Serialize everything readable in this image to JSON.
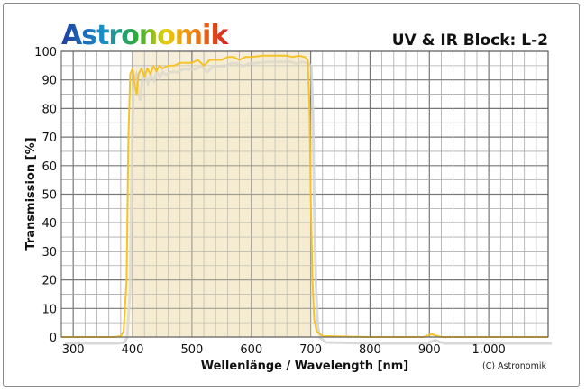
{
  "brand": {
    "logo_text": "Astronomik"
  },
  "chart_data": {
    "type": "line",
    "title": "UV & IR Block: L-2",
    "xlabel": "Wellenlänge / Wavelength [nm]",
    "ylabel": "Transmission [%]",
    "xlim": [
      280,
      1100
    ],
    "ylim": [
      0,
      100
    ],
    "grid": true,
    "x_ticks": [
      300,
      400,
      500,
      600,
      700,
      800,
      900,
      1000
    ],
    "x_tick_labels": [
      "300",
      "400",
      "500",
      "600",
      "700",
      "800",
      "900",
      "1.000"
    ],
    "y_ticks": [
      0,
      10,
      20,
      30,
      40,
      50,
      60,
      70,
      80,
      90,
      100
    ],
    "y_tick_labels": [
      "0",
      "10",
      "20",
      "30",
      "40",
      "50",
      "60",
      "70",
      "80",
      "90",
      "100"
    ],
    "highlight_band": [
      400,
      700
    ],
    "copyright": "(C) Astronomik",
    "series": [
      {
        "name": "L-2 transmission",
        "color": "#f5c22a",
        "x": [
          280,
          370,
          380,
          385,
          390,
          393,
          396,
          400,
          404,
          407,
          410,
          415,
          420,
          425,
          430,
          435,
          440,
          445,
          450,
          460,
          470,
          480,
          490,
          500,
          510,
          520,
          530,
          540,
          550,
          560,
          570,
          580,
          590,
          600,
          620,
          640,
          660,
          670,
          680,
          690,
          695,
          698,
          700,
          703,
          706,
          710,
          720,
          800,
          890,
          900,
          905,
          910,
          920,
          1100
        ],
        "y": [
          0,
          0,
          0.3,
          2,
          20,
          70,
          92,
          94,
          88,
          85,
          92,
          94,
          91,
          94,
          92,
          95,
          93,
          95,
          94,
          95,
          95,
          96,
          96,
          96,
          97,
          95,
          97,
          97,
          97,
          98,
          98,
          97,
          98,
          98,
          98.5,
          98.5,
          98.5,
          98,
          98.5,
          98,
          97,
          80,
          50,
          20,
          6,
          2,
          0.3,
          0,
          0,
          0.8,
          1,
          0.5,
          0,
          0
        ]
      }
    ]
  }
}
